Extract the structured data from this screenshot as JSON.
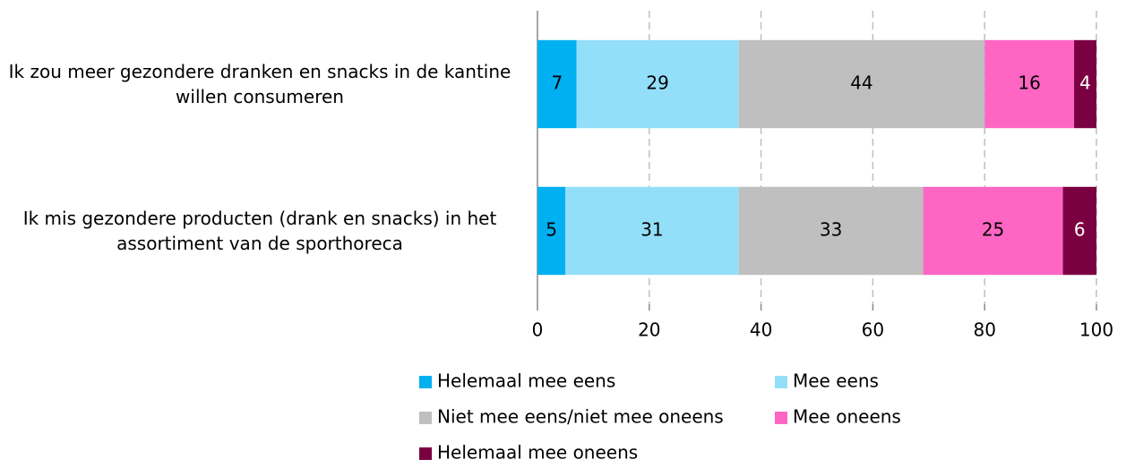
{
  "chart_data": {
    "type": "stacked-barh",
    "categories": [
      "Ik zou meer gezondere dranken en snacks in de kantine willen consumeren",
      "Ik mis gezondere producten (drank en snacks) in het assortiment van de sporthoreca"
    ],
    "series": [
      {
        "name": "Helemaal mee eens",
        "color": "#00b0f0",
        "values": [
          7,
          5
        ]
      },
      {
        "name": "Mee eens",
        "color": "#93dffa",
        "values": [
          29,
          31
        ]
      },
      {
        "name": "Niet mee eens/niet mee oneens",
        "color": "#bfbfbf",
        "values": [
          44,
          33
        ]
      },
      {
        "name": "Mee oneens",
        "color": "#ff66c4",
        "values": [
          16,
          25
        ]
      },
      {
        "name": "Helemaal mee oneens",
        "color": "#7b0041",
        "values": [
          4,
          6
        ]
      }
    ],
    "xlim": [
      0,
      100
    ],
    "xticks": [
      0,
      20,
      40,
      60,
      80,
      100
    ],
    "grid": true,
    "legend": "bottom"
  }
}
